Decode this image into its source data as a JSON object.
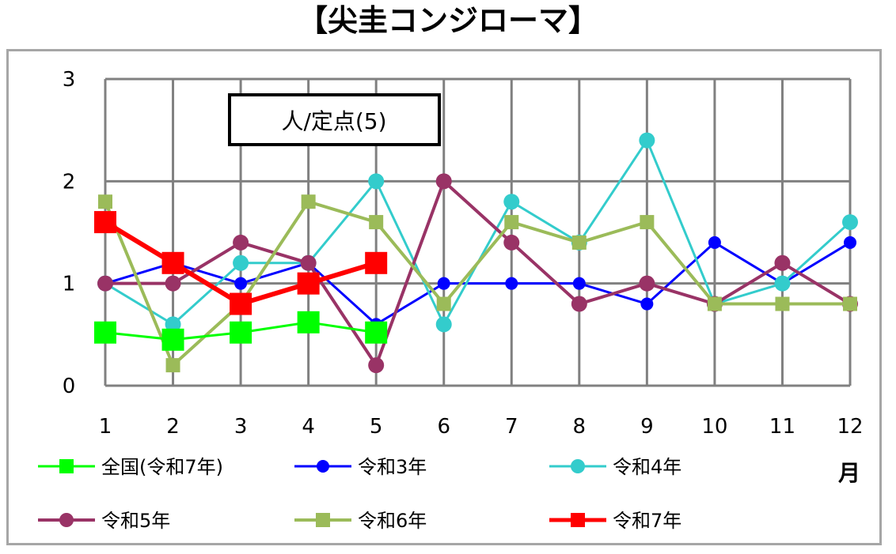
{
  "chart_data": {
    "type": "line",
    "title": "【尖圭コンジローマ】",
    "annotation": "人/定点(5)",
    "xlabel": "月",
    "ylabel": "",
    "categories": [
      "1",
      "2",
      "3",
      "4",
      "5",
      "6",
      "7",
      "8",
      "9",
      "10",
      "11",
      "12"
    ],
    "ylim": [
      0,
      3
    ],
    "yticks": [
      "0",
      "1",
      "2",
      "3"
    ],
    "grid": true,
    "legend_position": "bottom",
    "series": [
      {
        "name": "全国(令和7年)",
        "color": "#00ff00",
        "marker": "square",
        "width": 3,
        "markerSize": 14,
        "values": [
          0.52,
          0.45,
          0.52,
          0.62,
          0.52,
          null,
          null,
          null,
          null,
          null,
          null,
          null
        ]
      },
      {
        "name": "令和3年",
        "color": "#0000ff",
        "marker": "circle",
        "width": 3,
        "markerSize": 8,
        "values": [
          1.0,
          1.2,
          1.0,
          1.2,
          0.6,
          1.0,
          1.0,
          1.0,
          0.8,
          1.4,
          1.0,
          1.4
        ]
      },
      {
        "name": "令和4年",
        "color": "#33cccc",
        "marker": "circle",
        "width": 3,
        "markerSize": 10,
        "values": [
          1.0,
          0.6,
          1.2,
          1.2,
          2.0,
          0.6,
          1.8,
          1.4,
          2.4,
          0.8,
          1.0,
          1.6
        ]
      },
      {
        "name": "令和5年",
        "color": "#993366",
        "marker": "circle",
        "width": 4,
        "markerSize": 10,
        "values": [
          1.0,
          1.0,
          1.4,
          1.2,
          0.2,
          2.0,
          1.4,
          0.8,
          1.0,
          0.8,
          1.2,
          0.8
        ]
      },
      {
        "name": "令和6年",
        "color": "#9bbb59",
        "marker": "square",
        "width": 4,
        "markerSize": 9,
        "values": [
          1.8,
          0.2,
          0.8,
          1.8,
          1.6,
          0.8,
          1.6,
          1.4,
          1.6,
          0.8,
          0.8,
          0.8
        ]
      },
      {
        "name": "令和7年",
        "color": "#ff0000",
        "marker": "square",
        "width": 6,
        "markerSize": 14,
        "values": [
          1.6,
          1.2,
          0.8,
          1.0,
          1.2,
          null,
          null,
          null,
          null,
          null,
          null,
          null
        ]
      }
    ]
  }
}
